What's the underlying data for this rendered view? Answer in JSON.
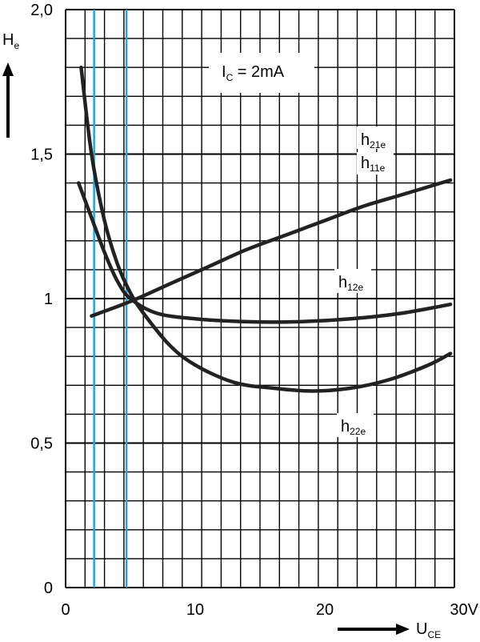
{
  "chart_data": {
    "type": "line",
    "ylabel": {
      "main": "H",
      "sub": "e"
    },
    "xlabel": {
      "main": "U",
      "sub": "CE"
    },
    "annotation": {
      "main": "I",
      "sub": "C",
      "rest": " = 2mA"
    },
    "xlim": [
      0,
      30
    ],
    "ylim": [
      0,
      2.0
    ],
    "grid": true,
    "x_ticks": [
      {
        "value": 0,
        "label": "0"
      },
      {
        "value": 10,
        "label": "10"
      },
      {
        "value": 20,
        "label": "20"
      },
      {
        "value": 30,
        "label": "30V"
      }
    ],
    "y_ticks": [
      {
        "value": 0,
        "label": "0"
      },
      {
        "value": 0.5,
        "label": "0,5"
      },
      {
        "value": 1.0,
        "label": "1"
      },
      {
        "value": 1.5,
        "label": "1,5"
      },
      {
        "value": 2.0,
        "label": "2,0"
      }
    ],
    "reference_lines": [
      {
        "x": 2.2,
        "color": "#29a3db"
      },
      {
        "x": 4.7,
        "color": "#29a3db"
      }
    ],
    "series": [
      {
        "name": "h21e",
        "x": [
          2,
          5,
          8,
          11,
          14,
          17,
          20,
          23,
          26,
          29.7
        ],
        "y": [
          0.94,
          0.99,
          1.05,
          1.11,
          1.17,
          1.22,
          1.27,
          1.32,
          1.36,
          1.41
        ]
      },
      {
        "name": "h11e",
        "x": [
          1,
          2,
          3,
          4,
          5,
          7,
          10,
          14,
          18,
          22,
          26,
          29.7
        ],
        "y": [
          1.4,
          1.28,
          1.16,
          1.06,
          1.0,
          0.95,
          0.93,
          0.92,
          0.92,
          0.93,
          0.95,
          0.98
        ]
      },
      {
        "name": "h12e",
        "x": [
          1.2,
          2,
          3,
          4,
          5,
          6,
          8,
          10,
          13,
          16,
          19,
          22,
          25,
          28,
          29.7
        ],
        "y": [
          1.8,
          1.5,
          1.27,
          1.12,
          1.02,
          0.95,
          0.84,
          0.77,
          0.71,
          0.69,
          0.68,
          0.69,
          0.72,
          0.77,
          0.81
        ]
      }
    ],
    "series_labels": [
      {
        "series": "h21e",
        "main": "h",
        "sub": "21e"
      },
      {
        "series": "h11e",
        "main": "h",
        "sub": "11e"
      },
      {
        "series": "h12e",
        "main": "h",
        "sub": "12e"
      },
      {
        "series": "h22e",
        "main": "h",
        "sub": "22e"
      }
    ]
  }
}
